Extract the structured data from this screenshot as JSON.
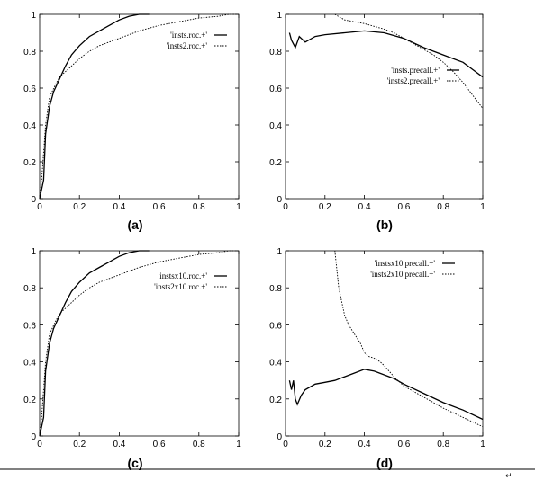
{
  "return_mark": "↵",
  "chart_data": [
    {
      "type": "line",
      "caption": "(a)",
      "title": "",
      "xlabel": "",
      "ylabel": "",
      "xlim": [
        0,
        1
      ],
      "ylim": [
        0,
        1
      ],
      "xticks": [
        "0",
        "0.2",
        "0.4",
        "0.6",
        "0.8",
        "1"
      ],
      "yticks": [
        "0",
        "0.2",
        "0.4",
        "0.6",
        "0.8",
        "1"
      ],
      "grid": false,
      "legend_position": "top-right",
      "series": [
        {
          "name": "'insts.roc.+'",
          "style": "solid",
          "x": [
            0,
            0.01,
            0.02,
            0.03,
            0.05,
            0.07,
            0.1,
            0.13,
            0.16,
            0.2,
            0.25,
            0.3,
            0.35,
            0.4,
            0.45,
            0.5,
            0.53,
            0.55
          ],
          "y": [
            0,
            0.05,
            0.1,
            0.35,
            0.5,
            0.58,
            0.65,
            0.72,
            0.78,
            0.83,
            0.88,
            0.91,
            0.94,
            0.97,
            0.99,
            1.0,
            1.0,
            1.0
          ]
        },
        {
          "name": "'insts2.roc.+'",
          "style": "dotted",
          "x": [
            0,
            0.01,
            0.02,
            0.03,
            0.05,
            0.08,
            0.1,
            0.15,
            0.2,
            0.25,
            0.3,
            0.4,
            0.5,
            0.6,
            0.7,
            0.8,
            0.9,
            0.95,
            1.0
          ],
          "y": [
            0,
            0.1,
            0.25,
            0.4,
            0.55,
            0.62,
            0.66,
            0.71,
            0.76,
            0.8,
            0.83,
            0.87,
            0.91,
            0.94,
            0.96,
            0.98,
            0.99,
            1.0,
            1.0
          ]
        }
      ]
    },
    {
      "type": "line",
      "caption": "(b)",
      "title": "",
      "xlabel": "",
      "ylabel": "",
      "xlim": [
        0,
        1
      ],
      "ylim": [
        0,
        1
      ],
      "xticks": [
        "0",
        "0.2",
        "0.4",
        "0.6",
        "0.8",
        "1"
      ],
      "yticks": [
        "0",
        "0.2",
        "0.4",
        "0.6",
        "0.8",
        "1"
      ],
      "grid": false,
      "legend_position": "middle-right",
      "series": [
        {
          "name": "'insts.precall.+'",
          "style": "solid",
          "x": [
            0.02,
            0.03,
            0.05,
            0.07,
            0.1,
            0.15,
            0.2,
            0.3,
            0.4,
            0.5,
            0.6,
            0.7,
            0.8,
            0.9,
            0.95,
            1.0
          ],
          "y": [
            0.9,
            0.86,
            0.82,
            0.88,
            0.85,
            0.88,
            0.89,
            0.9,
            0.91,
            0.9,
            0.87,
            0.82,
            0.78,
            0.74,
            0.7,
            0.66
          ]
        },
        {
          "name": "'insts2.precall.+'",
          "style": "dotted",
          "x": [
            0.25,
            0.3,
            0.4,
            0.5,
            0.55,
            0.6,
            0.65,
            0.7,
            0.75,
            0.8,
            0.85,
            0.9,
            0.95,
            1.0
          ],
          "y": [
            1.0,
            0.97,
            0.95,
            0.92,
            0.9,
            0.87,
            0.84,
            0.81,
            0.78,
            0.74,
            0.69,
            0.63,
            0.56,
            0.49
          ]
        }
      ]
    },
    {
      "type": "line",
      "caption": "(c)",
      "title": "",
      "xlabel": "",
      "ylabel": "",
      "xlim": [
        0,
        1
      ],
      "ylim": [
        0,
        1
      ],
      "xticks": [
        "0",
        "0.2",
        "0.4",
        "0.6",
        "0.8",
        "1"
      ],
      "yticks": [
        "0",
        "0.2",
        "0.4",
        "0.6",
        "0.8",
        "1"
      ],
      "grid": false,
      "legend_position": "top-right",
      "series": [
        {
          "name": "'instsx10.roc.+'",
          "style": "solid",
          "x": [
            0,
            0.01,
            0.02,
            0.03,
            0.05,
            0.07,
            0.1,
            0.13,
            0.16,
            0.2,
            0.25,
            0.3,
            0.35,
            0.4,
            0.45,
            0.5,
            0.53,
            0.55
          ],
          "y": [
            0,
            0.05,
            0.1,
            0.35,
            0.5,
            0.58,
            0.65,
            0.72,
            0.78,
            0.83,
            0.88,
            0.91,
            0.94,
            0.97,
            0.99,
            1.0,
            1.0,
            1.0
          ]
        },
        {
          "name": "'insts2x10.roc.+'",
          "style": "dotted",
          "x": [
            0,
            0.01,
            0.02,
            0.03,
            0.05,
            0.08,
            0.1,
            0.15,
            0.2,
            0.25,
            0.3,
            0.4,
            0.5,
            0.6,
            0.7,
            0.8,
            0.9,
            0.95,
            1.0
          ],
          "y": [
            0,
            0.1,
            0.25,
            0.4,
            0.55,
            0.62,
            0.66,
            0.71,
            0.76,
            0.8,
            0.83,
            0.87,
            0.91,
            0.94,
            0.96,
            0.98,
            0.99,
            1.0,
            1.0
          ]
        }
      ]
    },
    {
      "type": "line",
      "caption": "(d)",
      "title": "",
      "xlabel": "",
      "ylabel": "",
      "xlim": [
        0,
        1
      ],
      "ylim": [
        0,
        1
      ],
      "xticks": [
        "0",
        "0.2",
        "0.4",
        "0.6",
        "0.8",
        "1"
      ],
      "yticks": [
        "0",
        "0.2",
        "0.4",
        "0.6",
        "0.8",
        "1"
      ],
      "grid": false,
      "legend_position": "top-right",
      "series": [
        {
          "name": "'instsx10.precall.+'",
          "style": "solid",
          "x": [
            0.02,
            0.03,
            0.04,
            0.05,
            0.06,
            0.08,
            0.1,
            0.15,
            0.2,
            0.25,
            0.3,
            0.35,
            0.4,
            0.45,
            0.5,
            0.55,
            0.6,
            0.7,
            0.8,
            0.9,
            1.0
          ],
          "y": [
            0.3,
            0.25,
            0.3,
            0.2,
            0.17,
            0.22,
            0.25,
            0.28,
            0.29,
            0.3,
            0.32,
            0.34,
            0.36,
            0.35,
            0.33,
            0.31,
            0.28,
            0.23,
            0.18,
            0.14,
            0.09
          ]
        },
        {
          "name": "'insts2x10.precall.+'",
          "style": "dotted",
          "x": [
            0.25,
            0.27,
            0.3,
            0.32,
            0.35,
            0.38,
            0.4,
            0.42,
            0.45,
            0.48,
            0.5,
            0.55,
            0.6,
            0.7,
            0.8,
            0.9,
            1.0
          ],
          "y": [
            1.0,
            0.8,
            0.65,
            0.6,
            0.55,
            0.5,
            0.45,
            0.43,
            0.42,
            0.4,
            0.38,
            0.32,
            0.27,
            0.21,
            0.15,
            0.1,
            0.05
          ]
        }
      ]
    }
  ]
}
